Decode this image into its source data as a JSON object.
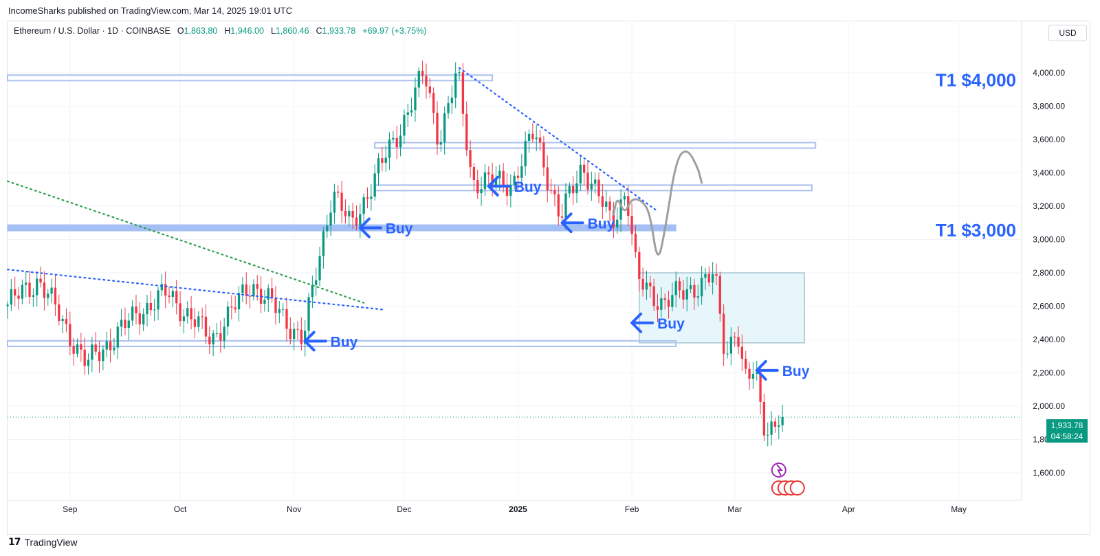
{
  "publisher_line": "IncomeSharks published on TradingView.com, Mar 14, 2025 19:01 UTC",
  "brand": {
    "logo_text": "17",
    "name": "TradingView"
  },
  "currency_button": "USD",
  "ohlc": {
    "symbol": "Ethereum / U.S. Dollar · 1D · COINBASE",
    "open_label": "O",
    "open": "1,863.80",
    "high_label": "H",
    "high": "1,946.00",
    "low_label": "L",
    "low": "1,860.46",
    "close_label": "C",
    "close": "1,933.78",
    "change": "+69.97 (+3.75%)"
  },
  "last_price": {
    "price": "1,933.78",
    "countdown": "04:58:24"
  },
  "colors": {
    "up": "#089981",
    "down": "#f23645",
    "annotation_blue": "#2962ff",
    "zone_fill": "#e6f6fb"
  },
  "chart_data": {
    "type": "candlestick",
    "x": [
      "Sep",
      "Oct",
      "Nov",
      "Dec",
      "2025",
      "Feb",
      "Mar",
      "Apr",
      "May"
    ],
    "ylim": [
      1500,
      4200
    ],
    "y_ticks": [
      "4,000.00",
      "3,800.00",
      "3,600.00",
      "3,400.00",
      "3,200.00",
      "3,000.00",
      "2,800.00",
      "2,600.00",
      "2,400.00",
      "2,200.00",
      "2,000.00",
      "1,800.00",
      "1,600.00"
    ],
    "x_ticks": [
      "Sep",
      "Oct",
      "Nov",
      "Dec",
      "2025",
      "Feb",
      "Mar",
      "Apr",
      "May"
    ],
    "start_date": "2024-08-15",
    "anchors": [
      {
        "d": "2024-08-15",
        "p": 2600
      },
      {
        "d": "2024-08-24",
        "p": 2760
      },
      {
        "d": "2024-09-06",
        "p": 2250
      },
      {
        "d": "2024-09-20",
        "p": 2560
      },
      {
        "d": "2024-09-28",
        "p": 2680
      },
      {
        "d": "2024-10-10",
        "p": 2400
      },
      {
        "d": "2024-10-21",
        "p": 2740
      },
      {
        "d": "2024-11-04",
        "p": 2400
      },
      {
        "d": "2024-11-12",
        "p": 3300
      },
      {
        "d": "2024-11-17",
        "p": 3070
      },
      {
        "d": "2024-11-23",
        "p": 3350
      },
      {
        "d": "2024-11-30",
        "p": 3650
      },
      {
        "d": "2024-12-07",
        "p": 4000
      },
      {
        "d": "2024-12-11",
        "p": 3600
      },
      {
        "d": "2024-12-16",
        "p": 4000
      },
      {
        "d": "2024-12-20",
        "p": 3350
      },
      {
        "d": "2024-12-31",
        "p": 3340
      },
      {
        "d": "2025-01-06",
        "p": 3650
      },
      {
        "d": "2025-01-13",
        "p": 3120
      },
      {
        "d": "2025-01-19",
        "p": 3450
      },
      {
        "d": "2025-01-27",
        "p": 3100
      },
      {
        "d": "2025-01-31",
        "p": 3300
      },
      {
        "d": "2025-02-03",
        "p": 2750
      },
      {
        "d": "2025-02-10",
        "p": 2620
      },
      {
        "d": "2025-02-24",
        "p": 2780
      },
      {
        "d": "2025-02-27",
        "p": 2300
      },
      {
        "d": "2025-03-02",
        "p": 2500
      },
      {
        "d": "2025-03-04",
        "p": 2150
      },
      {
        "d": "2025-03-07",
        "p": 2200
      },
      {
        "d": "2025-03-10",
        "p": 1850
      },
      {
        "d": "2025-03-14",
        "p": 1933.78
      }
    ],
    "levels": [
      {
        "price": 3970,
        "from": "2024-08-15",
        "to": "2024-12-25",
        "style": "thin"
      },
      {
        "price": 3565,
        "from": "2024-11-23",
        "to": "2025-03-23",
        "style": "thin"
      },
      {
        "price": 3310,
        "from": "2024-11-23",
        "to": "2025-03-22",
        "style": "thin"
      },
      {
        "price": 3070,
        "from": "2024-08-15",
        "to": "2025-02-13",
        "style": "thick"
      },
      {
        "price": 2375,
        "from": "2024-08-15",
        "to": "2025-02-13",
        "style": "thin"
      }
    ],
    "zone": {
      "from": "2025-02-03",
      "to": "2025-03-20",
      "top": 2800,
      "bottom": 2380
    },
    "dotted_lines": [
      {
        "color": "#2962ff",
        "from": {
          "d": "2024-12-16",
          "p": 4030
        },
        "to": {
          "d": "2025-02-08",
          "p": 3170
        }
      },
      {
        "color": "#2962ff",
        "from": {
          "d": "2024-08-15",
          "p": 2820
        },
        "to": {
          "d": "2024-11-25",
          "p": 2580
        }
      },
      {
        "color": "#2e9e4f",
        "from": {
          "d": "2024-08-15",
          "p": 3350
        },
        "to": {
          "d": "2024-11-20",
          "p": 2620
        }
      }
    ],
    "path_sketch": [
      {
        "d": "2025-01-27",
        "p": 3150
      },
      {
        "d": "2025-01-28",
        "p": 3260
      },
      {
        "d": "2025-01-30",
        "p": 3150
      },
      {
        "d": "2025-02-01",
        "p": 3250
      },
      {
        "d": "2025-02-04",
        "p": 3230
      },
      {
        "d": "2025-02-06",
        "p": 3150
      },
      {
        "d": "2025-02-08",
        "p": 2850
      },
      {
        "d": "2025-02-10",
        "p": 3050
      },
      {
        "d": "2025-02-13",
        "p": 3480
      },
      {
        "d": "2025-02-16",
        "p": 3550
      },
      {
        "d": "2025-02-19",
        "p": 3430
      },
      {
        "d": "2025-02-20",
        "p": 3340
      }
    ],
    "buy_signals": [
      {
        "d": "2024-11-04",
        "p": 2390,
        "label": "Buy"
      },
      {
        "d": "2024-11-19",
        "p": 3070,
        "label": "Buy"
      },
      {
        "d": "2024-12-24",
        "p": 3320,
        "label": "Buy"
      },
      {
        "d": "2025-01-13",
        "p": 3100,
        "label": "Buy"
      },
      {
        "d": "2025-02-01",
        "p": 2500,
        "label": "Buy"
      },
      {
        "d": "2025-03-07",
        "p": 2215,
        "label": "Buy"
      }
    ],
    "targets": [
      {
        "label": "T1 $4,000",
        "price": 3960
      },
      {
        "label": "T1 $3,000",
        "price": 3060
      }
    ],
    "last_price_value": 1933.78
  }
}
